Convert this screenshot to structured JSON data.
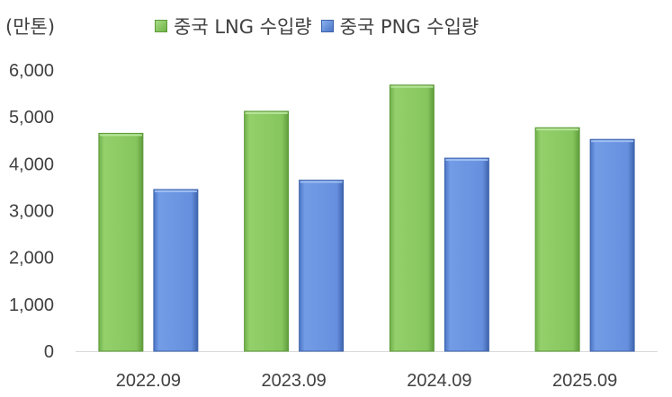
{
  "chart_data": {
    "type": "bar",
    "unit_label": "(만톤)",
    "categories": [
      "2022.09",
      "2023.09",
      "2024.09",
      "2025.09"
    ],
    "series": [
      {
        "name": "중국 LNG 수입량",
        "values": [
          4650,
          5120,
          5680,
          4770
        ],
        "color": "#7fc456"
      },
      {
        "name": "중국 PNG 수입량",
        "values": [
          3450,
          3650,
          4120,
          4520
        ],
        "color": "#5b87d8"
      }
    ],
    "ylim": [
      0,
      6000
    ],
    "yticks": [
      "0",
      "1,000",
      "2,000",
      "3,000",
      "4,000",
      "5,000",
      "6,000"
    ],
    "ytick_values": [
      0,
      1000,
      2000,
      3000,
      4000,
      5000,
      6000
    ],
    "grid": false,
    "legend_position": "top"
  }
}
